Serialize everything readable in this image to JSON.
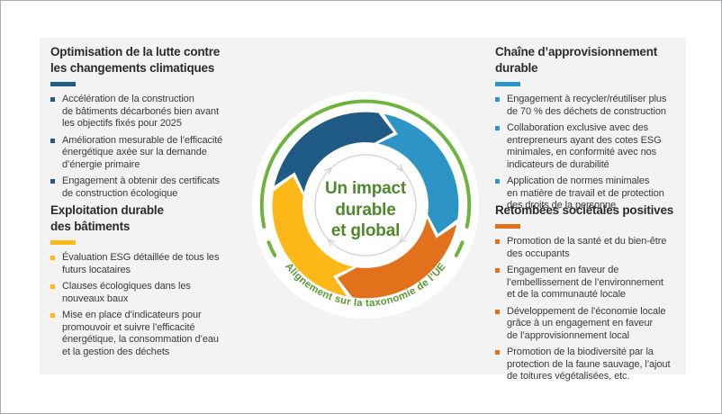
{
  "frame": {
    "background": "#ffffff",
    "panel_background": "#f3f3f4",
    "border_color": "#a6adb4"
  },
  "sections": [
    {
      "id": "climate",
      "title": "Optimisation de la lutte contre\nles changements climatiques",
      "accent": "#1f5b85",
      "items": [
        "Accélération de la construction\nde bâtiments décarbonés bien avant\nles objectifs fixés pour 2025",
        "Amélioration mesurable de l’efficacité\nénergétique axée sur la demande\nd’énergie primaire",
        "Engagement à obtenir des certificats\nde construction écologique"
      ]
    },
    {
      "id": "buildings",
      "title": "Exploitation durable\ndes bâtiments",
      "accent": "#fdb717",
      "items": [
        "Évaluation ESG détaillée de tous les\nfuturs locataires",
        "Clauses écologiques dans les\nnouveaux baux",
        "Mise en place d’indicateurs pour\npromouvoir et suivre l’efficacité\nénergétique, la consommation d’eau\net la gestion des déchets"
      ]
    },
    {
      "id": "supply-chain",
      "title": "Chaîne d’approvisionnement\ndurable",
      "accent": "#2d95c5",
      "items": [
        "Engagement à recycler/réutiliser plus\nde 70 % des déchets de construction",
        "Collaboration exclusive avec des\nentrepreneurs ayant des cotes ESG\nminimales, en conformité avec nos\nindicateurs de durabilité",
        "Application de normes minimales\nen matière de travail et de protection\ndes droits de la personne"
      ]
    },
    {
      "id": "societal",
      "title": "Retombées sociétales positives",
      "accent": "#e2711b",
      "items": [
        "Promotion de la santé et du bien-être\ndes occupants",
        "Engagement en faveur de\nl’embellissement de l’environnement\net de la communauté locale",
        "Développement de l’économie locale\ngrâce à un engagement en faveur\nde l’approvisionnement local",
        "Promotion de la biodiversité par la\nprotection de la faune sauvage, l’ajout\nde toitures végétalisées, etc."
      ]
    }
  ],
  "diagram": {
    "center_label": [
      "Un impact",
      "durable",
      "et global"
    ],
    "center_label_color": "#4e8a2b",
    "curved_label": "Alignement sur la taxonomie de l’UE",
    "curved_label_color": "#58992e",
    "ring_color": "#6db33c",
    "inner_circle_color": "#d4d4d4",
    "arcs": [
      {
        "name": "arc-dark-blue",
        "color": "#1f5b85",
        "from": 282,
        "to": 8
      },
      {
        "name": "arc-light-blue",
        "color": "#2d95c5",
        "from": 11.5,
        "to": 98.5
      },
      {
        "name": "arc-orange",
        "color": "#e2711b",
        "from": 102,
        "to": 188
      },
      {
        "name": "arc-yellow",
        "color": "#fdb717",
        "from": 191.5,
        "to": 278.5
      }
    ]
  }
}
